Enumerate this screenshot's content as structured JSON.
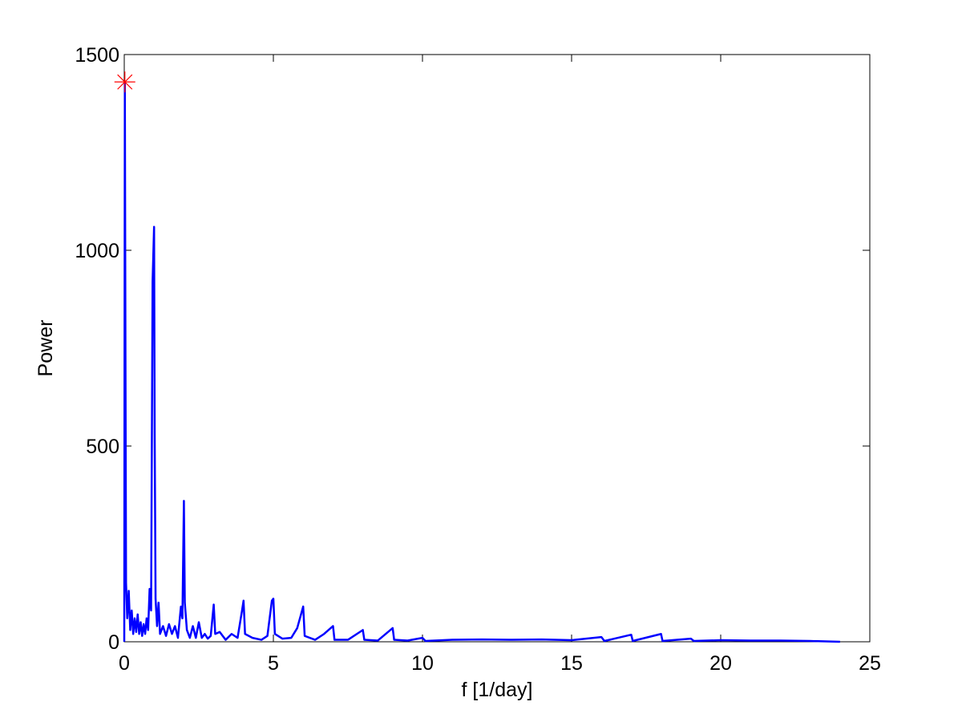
{
  "chart_data": {
    "type": "line",
    "xlabel": "f [1/day]",
    "ylabel": "Power",
    "xlim": [
      0,
      25
    ],
    "xticks": [
      0,
      5,
      10,
      15,
      20,
      25
    ],
    "ylim": [
      0,
      1500
    ],
    "yticks": [
      0,
      500,
      1000,
      1500
    ],
    "grid": false,
    "series": [
      {
        "color": "#0000ff",
        "x": [
          0,
          0.02,
          0.04,
          0.06,
          0.1,
          0.15,
          0.2,
          0.25,
          0.3,
          0.35,
          0.4,
          0.45,
          0.5,
          0.55,
          0.6,
          0.65,
          0.7,
          0.75,
          0.8,
          0.85,
          0.9,
          0.95,
          1.0,
          1.02,
          1.05,
          1.1,
          1.15,
          1.2,
          1.3,
          1.4,
          1.5,
          1.6,
          1.7,
          1.8,
          1.9,
          1.95,
          2.0,
          2.03,
          2.1,
          2.2,
          2.3,
          2.4,
          2.5,
          2.6,
          2.7,
          2.8,
          2.9,
          3.0,
          3.05,
          3.2,
          3.4,
          3.6,
          3.8,
          3.95,
          4.0,
          4.05,
          4.3,
          4.6,
          4.8,
          4.95,
          5.0,
          5.05,
          5.3,
          5.6,
          5.8,
          6.0,
          6.05,
          6.4,
          6.7,
          7.0,
          7.05,
          7.5,
          8.0,
          8.05,
          8.5,
          9.0,
          9.05,
          9.5,
          10.0,
          10.1,
          11.0,
          12.0,
          13.0,
          14.0,
          15.0,
          16.0,
          16.1,
          17.0,
          17.05,
          18.0,
          18.05,
          19.0,
          19.1,
          20.0,
          21.0,
          22.0,
          23.0,
          24.0
        ],
        "values": [
          0,
          1430,
          730,
          150,
          60,
          130,
          30,
          80,
          20,
          60,
          25,
          70,
          20,
          50,
          15,
          45,
          20,
          60,
          30,
          135,
          80,
          920,
          1060,
          530,
          110,
          40,
          100,
          20,
          40,
          15,
          45,
          20,
          40,
          10,
          90,
          60,
          360,
          100,
          30,
          10,
          40,
          10,
          50,
          10,
          20,
          8,
          15,
          95,
          20,
          25,
          5,
          20,
          10,
          80,
          105,
          20,
          10,
          5,
          15,
          105,
          110,
          20,
          8,
          10,
          35,
          90,
          15,
          5,
          20,
          40,
          5,
          5,
          30,
          5,
          3,
          35,
          5,
          3,
          10,
          2,
          5,
          6,
          5,
          6,
          4,
          12,
          2,
          18,
          2,
          20,
          2,
          8,
          2,
          4,
          3,
          3,
          2,
          0
        ]
      }
    ],
    "peak": {
      "x": 0.02,
      "y": 1430,
      "color": "#ff0000"
    }
  }
}
